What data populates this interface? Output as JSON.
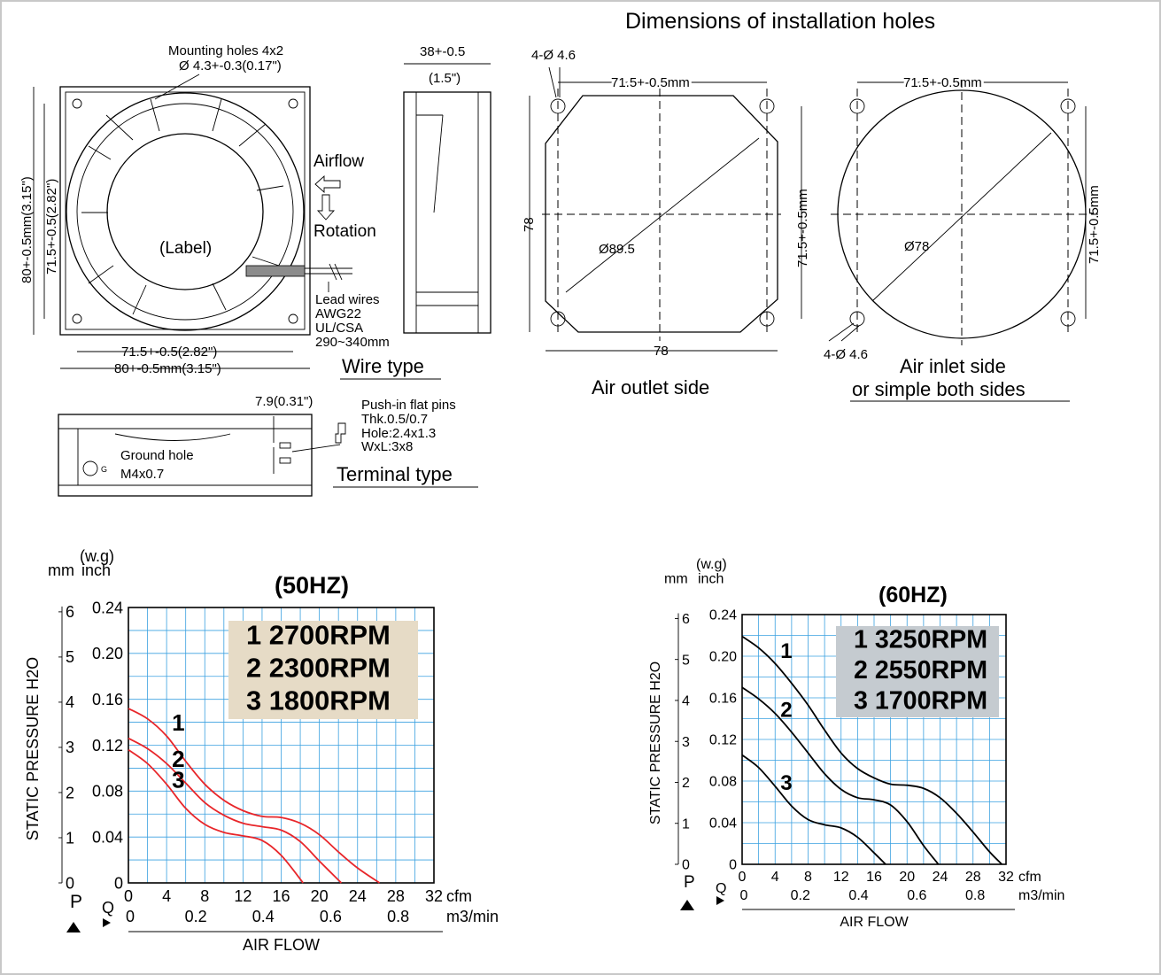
{
  "page_title": "Dimensions of installation holes",
  "front_view": {
    "mounting_holes_line1": "Mounting holes 4x2",
    "mounting_holes_line2": "Ø 4.3+-0.3(0.17\")",
    "height_outer": "80+-0.5mm(3.15\")",
    "height_inner": "71.5+-0.5(2.82\")",
    "label": "(Label)",
    "airflow": "Airflow",
    "rotation": "Rotation",
    "lead_wires": [
      "Lead wires",
      "AWG22",
      "UL/CSA",
      "290~340mm"
    ],
    "width_inner": "71.5+-0.5(2.82\")",
    "width_outer": "80+-0.5mm(3.15\")",
    "wire_type": "Wire type"
  },
  "side_view": {
    "depth": "38+-0.5",
    "depth_in": "(1.5\")"
  },
  "terminal_view": {
    "offset": "7.9(0.31\")",
    "pins": [
      "Push-in flat pins",
      "Thk.0.5/0.7",
      "Hole:2.4x1.3",
      "WxL:3x8"
    ],
    "ground_hole": [
      "Ground hole",
      "M4x0.7"
    ],
    "g_mark": "G",
    "terminal_type": "Terminal type"
  },
  "outlet_view": {
    "holes": "4-Ø 4.6",
    "spacing_top": "71.5+-0.5mm",
    "spacing_right": "71.5+-0.5mm",
    "height": "78",
    "width": "78",
    "diameter": "Ø89.5",
    "caption": "Air outlet side"
  },
  "inlet_view": {
    "spacing_top": "71.5+-0.5mm",
    "spacing_right": "71.5+-0.5mm",
    "diameter": "Ø78",
    "holes": "4-Ø 4.6",
    "caption_line1": "Air inlet side",
    "caption_line2": "or simple both sides"
  },
  "charts": {
    "ylabel": "STATIC PRESSURE H2O",
    "xlabel": "AIR FLOW",
    "unit_wg": "(w.g)",
    "unit_mm": "mm",
    "unit_inch": "inch",
    "unit_cfm": "cfm",
    "unit_m3": "m3/min",
    "p_axis": "P",
    "q_axis": "Q",
    "mm_ticks": [
      "0",
      "1",
      "2",
      "3",
      "4",
      "5",
      "6"
    ],
    "inch_ticks": [
      "0",
      "0.04",
      "0.08",
      "0.12",
      "0.16",
      "0.20",
      "0.24"
    ],
    "cfm_ticks": [
      "0",
      "4",
      "8",
      "12",
      "16",
      "20",
      "24",
      "28",
      "32"
    ],
    "m3_ticks": [
      "0",
      "0.2",
      "0.4",
      "0.6",
      "0.8"
    ]
  },
  "chart_data": [
    {
      "type": "line",
      "title": "(50HZ)",
      "xlabel": "AIR FLOW",
      "ylabel": "STATIC PRESSURE H2O",
      "xlim": [
        0,
        32
      ],
      "ylim": [
        0,
        0.24
      ],
      "line_color": "#e8262a",
      "legend_bg": "#e6dbc6",
      "legend": [
        "1  2700RPM",
        "2  2300RPM",
        "3  1800RPM"
      ],
      "series": [
        {
          "name": "1",
          "x": [
            0,
            2,
            4,
            6,
            8,
            10,
            12,
            14,
            16,
            18,
            20,
            22,
            24,
            26.3
          ],
          "y": [
            0.152,
            0.143,
            0.128,
            0.106,
            0.086,
            0.072,
            0.063,
            0.058,
            0.057,
            0.052,
            0.042,
            0.027,
            0.013,
            0
          ]
        },
        {
          "name": "2",
          "x": [
            0,
            2,
            4,
            6,
            8,
            10,
            12,
            14,
            16,
            18,
            20,
            22.3
          ],
          "y": [
            0.126,
            0.117,
            0.104,
            0.087,
            0.07,
            0.059,
            0.052,
            0.049,
            0.046,
            0.036,
            0.019,
            0
          ]
        },
        {
          "name": "3",
          "x": [
            0,
            2,
            4,
            6,
            8,
            10,
            12,
            14,
            16,
            18.3
          ],
          "y": [
            0.116,
            0.104,
            0.086,
            0.065,
            0.051,
            0.044,
            0.041,
            0.037,
            0.024,
            0
          ]
        }
      ]
    },
    {
      "type": "line",
      "title": "(60HZ)",
      "xlabel": "AIR FLOW",
      "ylabel": "STATIC PRESSURE H2O",
      "xlim": [
        0,
        32
      ],
      "ylim": [
        0,
        0.24
      ],
      "line_color": "#000000",
      "legend_bg": "#c5cbd0",
      "legend": [
        "1  3250RPM",
        "2  2550RPM",
        "3  1700RPM"
      ],
      "series": [
        {
          "name": "1",
          "x": [
            0,
            2,
            4,
            6,
            8,
            10,
            12,
            14,
            16,
            18,
            20,
            22,
            24,
            26,
            28,
            30,
            31.5
          ],
          "y": [
            0.219,
            0.208,
            0.193,
            0.174,
            0.153,
            0.129,
            0.107,
            0.092,
            0.083,
            0.077,
            0.076,
            0.073,
            0.064,
            0.049,
            0.031,
            0.012,
            0
          ]
        },
        {
          "name": "2",
          "x": [
            0,
            2,
            4,
            6,
            8,
            10,
            12,
            14,
            16,
            18,
            20,
            22,
            23.8
          ],
          "y": [
            0.17,
            0.159,
            0.145,
            0.127,
            0.107,
            0.087,
            0.072,
            0.064,
            0.062,
            0.057,
            0.041,
            0.018,
            0
          ]
        },
        {
          "name": "3",
          "x": [
            0,
            2,
            4,
            6,
            8,
            10,
            12,
            14,
            16,
            17.4
          ],
          "y": [
            0.105,
            0.093,
            0.075,
            0.056,
            0.043,
            0.038,
            0.035,
            0.026,
            0.011,
            0
          ]
        }
      ]
    }
  ]
}
